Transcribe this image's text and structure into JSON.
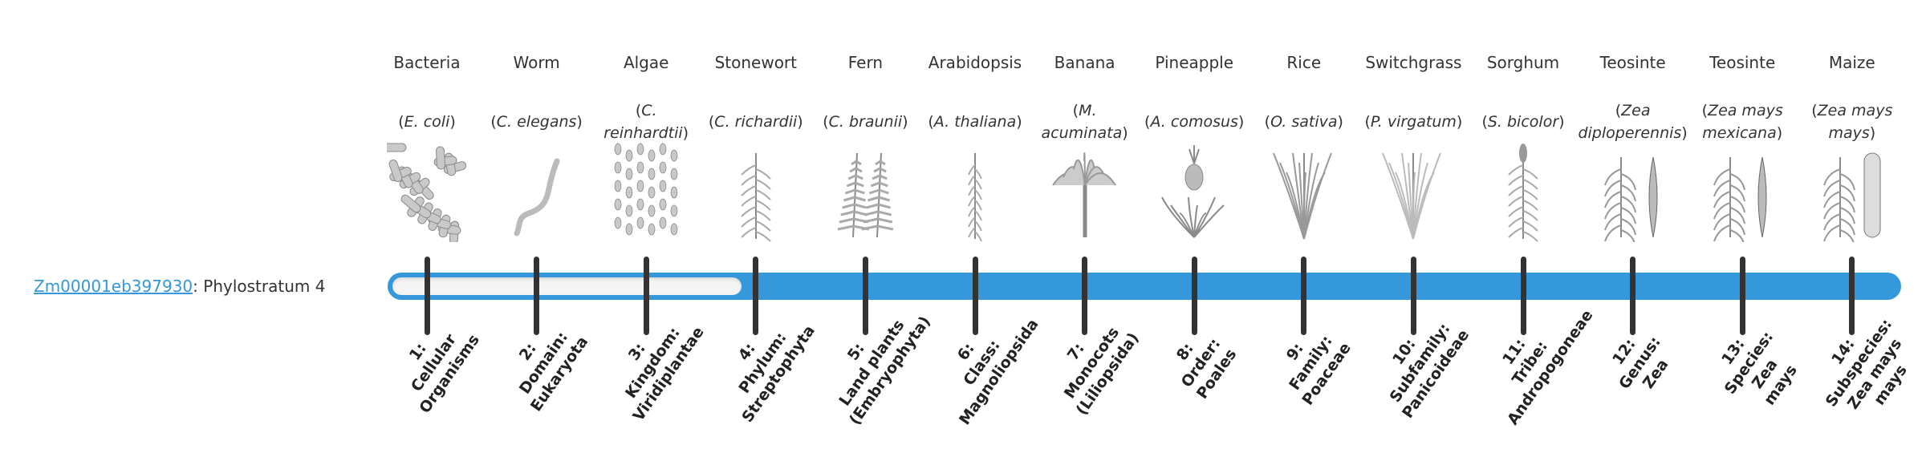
{
  "gene": {
    "id": "Zm00001eb397930",
    "suffix": ": Phylostratum 4"
  },
  "colors": {
    "accent": "#3498db",
    "tick": "#333333",
    "empty": "#f4f4f4"
  },
  "phylostratum_value": 4,
  "organisms": [
    {
      "common": "Bacteria",
      "sci_open": "(",
      "sci": "E. coli",
      "sci_close": ")",
      "icon": "bacteria-icon"
    },
    {
      "common": "Worm",
      "sci_open": "(",
      "sci": "C. elegans",
      "sci_close": ")",
      "icon": "worm-icon"
    },
    {
      "common": "Algae",
      "sci_open": "(",
      "sci": "C. reinhardtii",
      "sci_close": ")",
      "icon": "algae-icon"
    },
    {
      "common": "Stonewort",
      "sci_open": "(",
      "sci": "C. richardii",
      "sci_close": ")",
      "icon": "stonewort-icon"
    },
    {
      "common": "Fern",
      "sci_open": "(",
      "sci": "C. braunii",
      "sci_close": ")",
      "icon": "fern-icon"
    },
    {
      "common": "Arabidopsis",
      "sci_open": "(",
      "sci": "A. thaliana",
      "sci_close": ")",
      "icon": "arabidopsis-icon"
    },
    {
      "common": "Banana",
      "sci_open": "(",
      "sci": "M. acuminata",
      "sci_close": ")",
      "icon": "banana-icon"
    },
    {
      "common": "Pineapple",
      "sci_open": "(",
      "sci": "A. comosus",
      "sci_close": ")",
      "icon": "pineapple-icon"
    },
    {
      "common": "Rice",
      "sci_open": "(",
      "sci": "O. sativa",
      "sci_close": ")",
      "icon": "rice-icon"
    },
    {
      "common": "Switchgrass",
      "sci_open": "(",
      "sci": "P. virgatum",
      "sci_close": ")",
      "icon": "switchgrass-icon"
    },
    {
      "common": "Sorghum",
      "sci_open": "(",
      "sci": "S. bicolor",
      "sci_close": ")",
      "icon": "sorghum-icon"
    },
    {
      "common": "Teosinte",
      "sci_open": "(",
      "sci": "Zea diploperennis",
      "sci_close": ")",
      "icon": "teosinte-icon"
    },
    {
      "common": "Teosinte",
      "sci_open": "(",
      "sci": "Zea mays mexicana",
      "sci_close": ")",
      "icon": "teosinte-icon"
    },
    {
      "common": "Maize",
      "sci_open": "(",
      "sci": "Zea mays mays",
      "sci_close": ")",
      "icon": "maize-icon"
    }
  ],
  "strata": [
    {
      "lines": [
        "1:",
        "Cellular",
        "Organisms"
      ]
    },
    {
      "lines": [
        "2:",
        "Domain:",
        "Eukaryota"
      ]
    },
    {
      "lines": [
        "3:",
        "Kingdom:",
        "Viridiplantae"
      ]
    },
    {
      "lines": [
        "4:",
        "Phylum:",
        "Streptophyta"
      ]
    },
    {
      "lines": [
        "5:",
        "Land plants",
        "(Embryophyta)"
      ]
    },
    {
      "lines": [
        "6:",
        "Class:",
        "Magnoliopsida"
      ]
    },
    {
      "lines": [
        "7:",
        "Monocots",
        "(Liliopsida)"
      ]
    },
    {
      "lines": [
        "8:",
        "Order:",
        "Poales"
      ]
    },
    {
      "lines": [
        "9:",
        "Family:",
        "Poaceae"
      ]
    },
    {
      "lines": [
        "10:",
        "Subfamily:",
        "Panicoideae"
      ]
    },
    {
      "lines": [
        "11:",
        "Tribe:",
        "Andropogoneae"
      ]
    },
    {
      "lines": [
        "12:",
        "Genus:",
        "Zea"
      ]
    },
    {
      "lines": [
        "13:",
        "Species:",
        "Zea",
        "mays"
      ]
    },
    {
      "lines": [
        "14:",
        "Subspecies:",
        "Zea mays",
        "mays"
      ]
    }
  ]
}
